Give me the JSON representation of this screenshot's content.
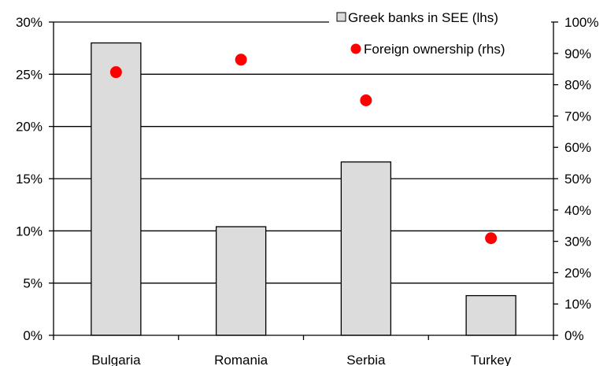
{
  "chart_data": {
    "type": "bar",
    "categories": [
      "Bulgaria",
      "Romania",
      "Serbia",
      "Turkey"
    ],
    "series": [
      {
        "name": "Greek banks in SEE (lhs)",
        "type": "bar",
        "axis": "left",
        "values": [
          28.0,
          10.4,
          16.6,
          3.8
        ]
      },
      {
        "name": "Foreign ownership (rhs)",
        "type": "scatter",
        "axis": "right",
        "values": [
          84,
          88,
          75,
          31
        ]
      }
    ],
    "y_left": {
      "min": 0,
      "max": 30,
      "step": 5,
      "ticks": [
        "0%",
        "5%",
        "10%",
        "15%",
        "20%",
        "25%",
        "30%"
      ]
    },
    "y_right": {
      "min": 0,
      "max": 100,
      "step": 10,
      "ticks": [
        "0%",
        "10%",
        "20%",
        "30%",
        "40%",
        "50%",
        "60%",
        "70%",
        "80%",
        "90%",
        "100%"
      ]
    },
    "grid": true,
    "legend_position": "top-right",
    "colors": {
      "bar_fill": "#dcdcdc",
      "bar_stroke": "#000000",
      "marker": "#ff0000",
      "grid": "#000000"
    }
  }
}
